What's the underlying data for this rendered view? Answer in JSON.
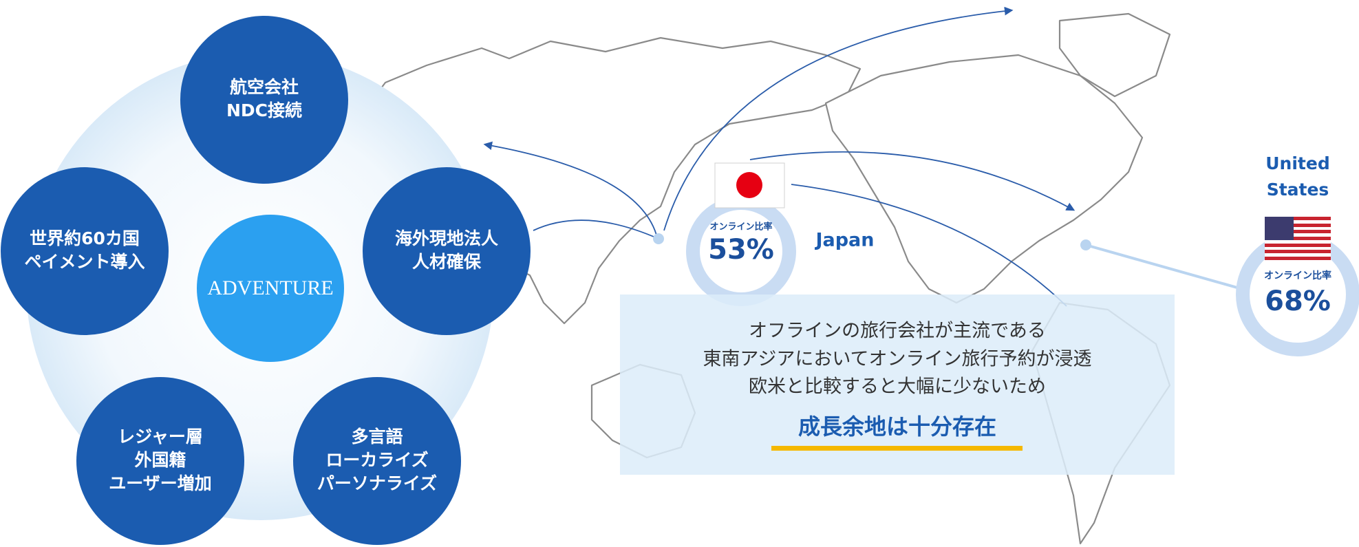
{
  "center_label": "ADVENTURE",
  "features": [
    {
      "lines": [
        "航空会社",
        "NDC接続"
      ]
    },
    {
      "lines": [
        "海外現地法人",
        "人材確保"
      ]
    },
    {
      "lines": [
        "多言語",
        "ローカライズ",
        "パーソナライズ"
      ]
    },
    {
      "lines": [
        "レジャー層",
        "外国籍",
        "ユーザー増加"
      ]
    },
    {
      "lines": [
        "世界約60カ国",
        "ペイメント導入"
      ]
    }
  ],
  "countries": [
    {
      "name_lines": [
        "Japan"
      ],
      "metric_label": "オンライン比率",
      "metric_value": "53%"
    },
    {
      "name_lines": [
        "United",
        "States"
      ],
      "metric_label": "オンライン比率",
      "metric_value": "68%"
    }
  ],
  "message": {
    "lines": [
      "オフラインの旅行会社が主流である",
      "東南アジアにおいてオンライン旅行予約が浸透",
      "欧米と比較すると大幅に少ないため"
    ],
    "highlight": "成長余地は十分存在"
  }
}
